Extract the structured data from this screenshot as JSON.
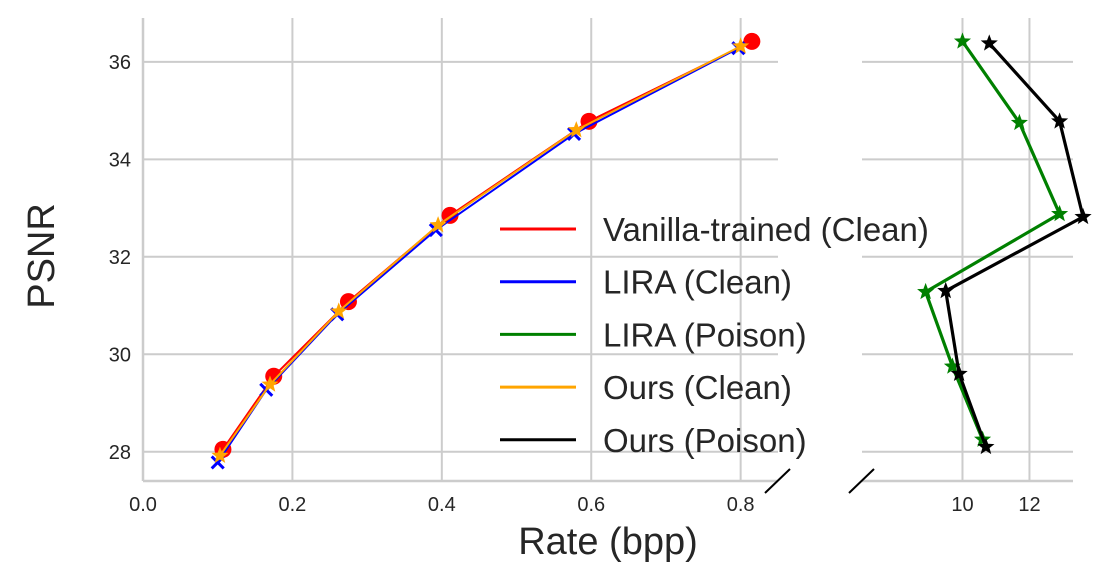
{
  "chart_data": {
    "type": "line",
    "xlabel": "Rate (bpp)",
    "ylabel": "PSNR",
    "ylim": [
      27.4,
      36.9
    ],
    "yticks": [
      28,
      30,
      32,
      34,
      36
    ],
    "broken_x_axis": true,
    "left_panel": {
      "xlim": [
        0.0,
        0.85
      ],
      "xticks": [
        "0.0",
        "0.2",
        "0.4",
        "0.6",
        "0.8"
      ]
    },
    "right_panel": {
      "xlim": [
        7.0,
        13.3
      ],
      "xticks": [
        "10",
        "12"
      ]
    },
    "series": [
      {
        "name": "Vanilla-trained (Clean)",
        "color": "#ff0000",
        "marker": "circle",
        "panel": "left",
        "x": [
          0.107,
          0.175,
          0.275,
          0.411,
          0.597,
          0.815
        ],
        "y": [
          28.05,
          29.55,
          31.08,
          32.85,
          34.78,
          36.42
        ]
      },
      {
        "name": "LIRA (Clean)",
        "color": "#0000ff",
        "marker": "x",
        "panel": "left",
        "x": [
          0.1,
          0.165,
          0.26,
          0.392,
          0.577,
          0.797
        ],
        "y": [
          27.78,
          29.27,
          30.82,
          32.55,
          34.52,
          36.28
        ]
      },
      {
        "name": "LIRA (Poison)",
        "color": "#008000",
        "marker": "star",
        "panel": "right",
        "x": [
          10.6,
          9.7,
          8.9,
          12.9,
          11.7,
          10.0
        ],
        "y": [
          28.25,
          29.75,
          31.28,
          32.88,
          34.75,
          36.42
        ]
      },
      {
        "name": "Ours (Clean)",
        "color": "#ffa500",
        "marker": "star",
        "panel": "left",
        "x": [
          0.103,
          0.17,
          0.262,
          0.395,
          0.58,
          0.8
        ],
        "y": [
          27.92,
          29.38,
          30.88,
          32.65,
          34.6,
          36.32
        ]
      },
      {
        "name": "Ours (Poison)",
        "color": "#000000",
        "marker": "star",
        "panel": "right",
        "x": [
          10.7,
          9.9,
          9.5,
          13.6,
          12.9,
          10.8
        ],
        "y": [
          28.1,
          29.6,
          31.3,
          32.82,
          34.78,
          36.38
        ]
      }
    ]
  }
}
